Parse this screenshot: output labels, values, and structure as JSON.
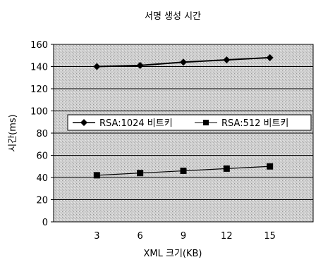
{
  "chart_data": {
    "type": "line",
    "title": "서명 생성 시간",
    "xlabel": "XML 크기(KB)",
    "ylabel": "시간(ms)",
    "x": [
      3,
      6,
      9,
      12,
      15
    ],
    "xticks": [
      "3",
      "6",
      "9",
      "12",
      "15"
    ],
    "ylim": [
      0,
      160
    ],
    "yticks": [
      0,
      20,
      40,
      60,
      80,
      100,
      120,
      140,
      160
    ],
    "grid": true,
    "legend_position": "inside-middle",
    "series": [
      {
        "name": "RSA:1024 비트키",
        "values": [
          140,
          141,
          144,
          146,
          148
        ],
        "marker": "diamond",
        "color": "#000000"
      },
      {
        "name": "RSA:512 비트키",
        "values": [
          42,
          44,
          46,
          48,
          50
        ],
        "marker": "square",
        "color": "#000000"
      }
    ],
    "plot_background": "#cfcfcf"
  }
}
